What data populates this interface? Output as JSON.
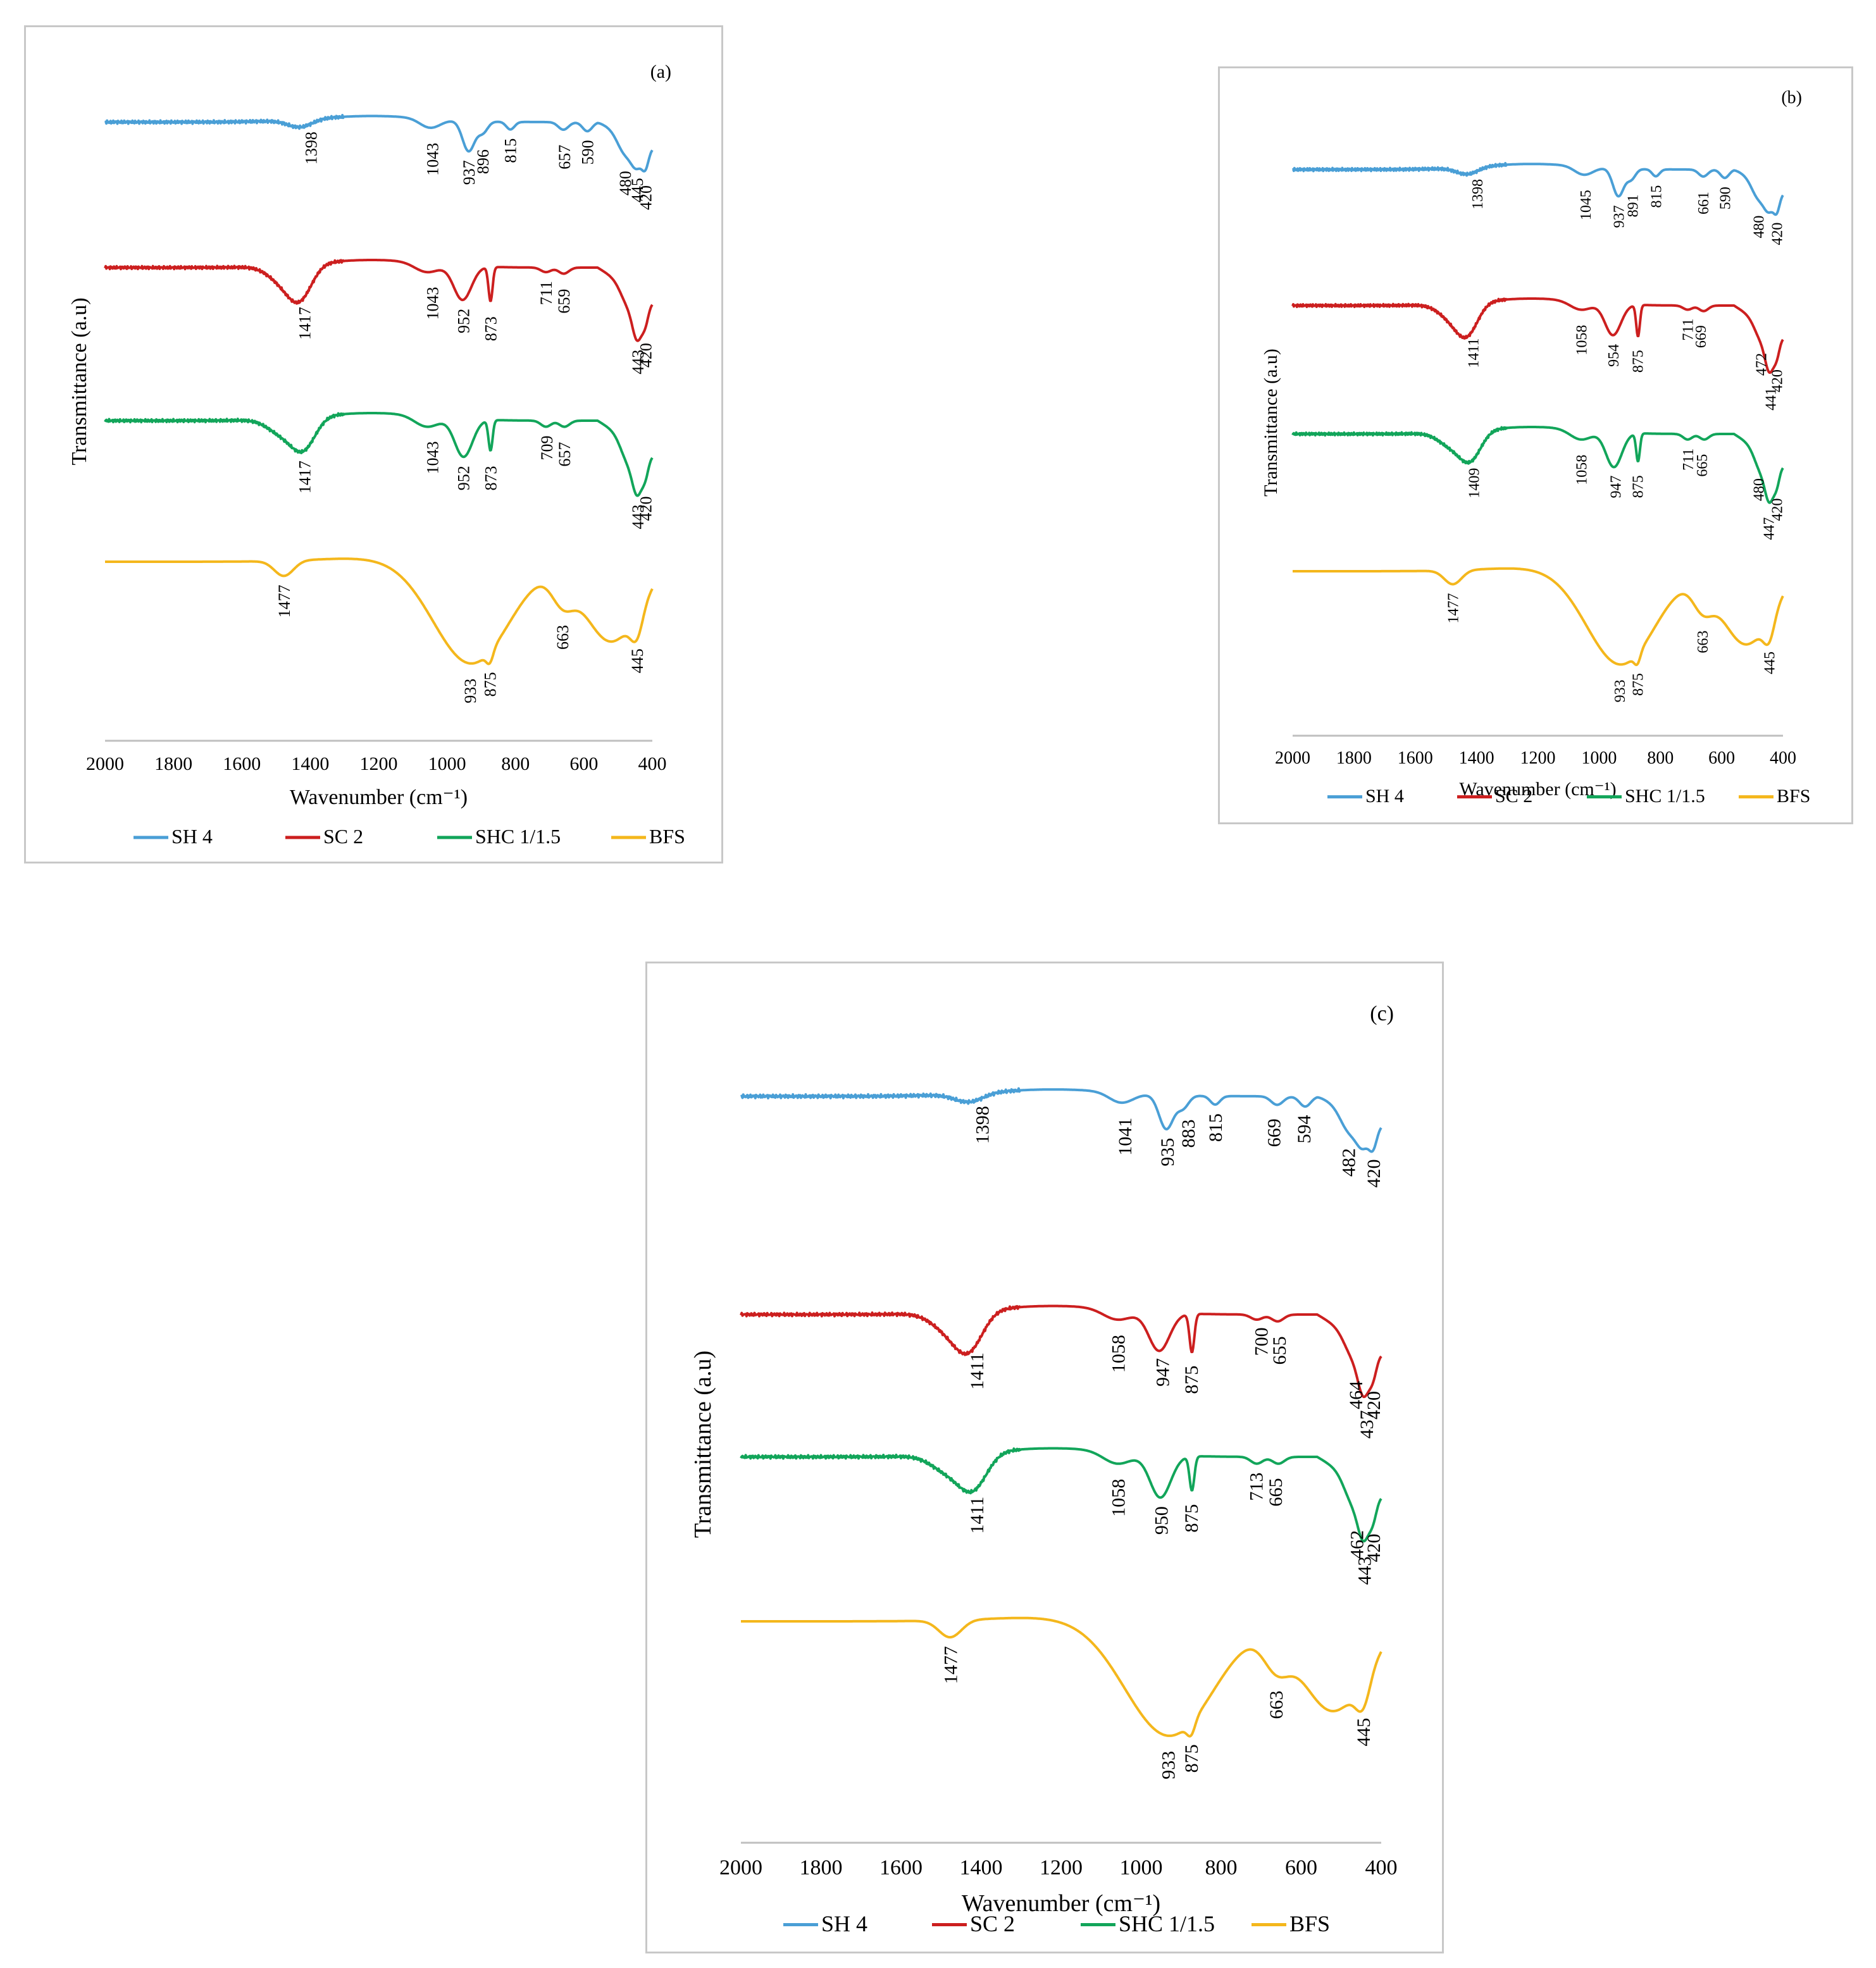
{
  "chart_data": [
    {
      "panel": "(a)",
      "type": "line",
      "xlabel": "Wavenumber (cm⁻¹)",
      "ylabel": "Transmittance (a.u)",
      "xlim": [
        2000,
        400
      ],
      "xticks": [
        "2000",
        "1800",
        "1600",
        "1400",
        "1200",
        "1000",
        "800",
        "600",
        "400"
      ],
      "legend": "bottom",
      "series": [
        {
          "name": "SH 4",
          "color": "#4a9fd6",
          "peaks": [
            1398,
            1043,
            937,
            896,
            815,
            657,
            590,
            480,
            445,
            420
          ]
        },
        {
          "name": "SC 2",
          "color": "#cc1f1f",
          "peaks": [
            1417,
            1043,
            952,
            873,
            711,
            659,
            443,
            420
          ]
        },
        {
          "name": "SHC 1/1.5",
          "color": "#12a55a",
          "peaks": [
            1417,
            1043,
            952,
            873,
            709,
            657,
            443,
            420
          ]
        },
        {
          "name": "BFS",
          "color": "#f4b71c",
          "peaks": [
            1477,
            933,
            875,
            663,
            445
          ]
        }
      ]
    },
    {
      "panel": "(b)",
      "type": "line",
      "xlabel": "Wavenumber (cm⁻¹)",
      "ylabel": "Transmittance (a.u)",
      "xlim": [
        2000,
        400
      ],
      "xticks": [
        "2000",
        "1800",
        "1600",
        "1400",
        "1200",
        "1000",
        "800",
        "600",
        "400"
      ],
      "legend": "bottom",
      "series": [
        {
          "name": "SH 4",
          "color": "#4a9fd6",
          "peaks": [
            1398,
            1045,
            937,
            891,
            815,
            661,
            590,
            480,
            420
          ]
        },
        {
          "name": "SC 2",
          "color": "#cc1f1f",
          "peaks": [
            1411,
            1058,
            954,
            875,
            711,
            669,
            472,
            441,
            420
          ]
        },
        {
          "name": "SHC 1/1.5",
          "color": "#12a55a",
          "peaks": [
            1409,
            1058,
            947,
            875,
            711,
            665,
            480,
            447,
            420
          ]
        },
        {
          "name": "BFS",
          "color": "#f4b71c",
          "peaks": [
            1477,
            933,
            875,
            663,
            445
          ]
        }
      ]
    },
    {
      "panel": "(c)",
      "type": "line",
      "xlabel": "Wavenumber (cm⁻¹)",
      "ylabel": "Transmittance (a.u)",
      "xlim": [
        2000,
        400
      ],
      "xticks": [
        "2000",
        "1800",
        "1600",
        "1400",
        "1200",
        "1000",
        "800",
        "600",
        "400"
      ],
      "legend": "bottom",
      "series": [
        {
          "name": "SH 4",
          "color": "#4a9fd6",
          "peaks": [
            1398,
            1041,
            935,
            883,
            815,
            669,
            594,
            482,
            420
          ]
        },
        {
          "name": "SC 2",
          "color": "#cc1f1f",
          "peaks": [
            1411,
            1058,
            947,
            875,
            700,
            655,
            464,
            437,
            420
          ]
        },
        {
          "name": "SHC 1/1.5",
          "color": "#12a55a",
          "peaks": [
            1411,
            1058,
            950,
            875,
            713,
            665,
            462,
            443,
            420
          ]
        },
        {
          "name": "BFS",
          "color": "#f4b71c",
          "peaks": [
            1477,
            933,
            875,
            663,
            445
          ]
        }
      ]
    }
  ]
}
